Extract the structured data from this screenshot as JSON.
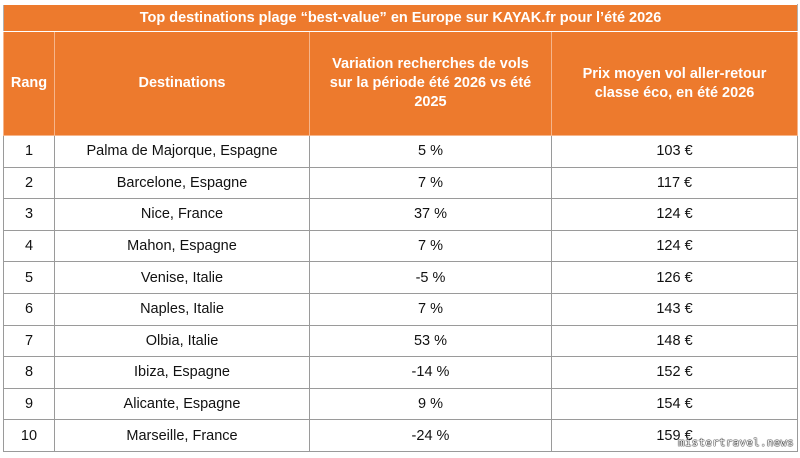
{
  "table": {
    "title": "Top destinations plage “best-value” en Europe sur KAYAK.fr pour l’été 2026",
    "headers": {
      "rank": "Rang",
      "destination": "Destinations",
      "variation": "Variation recherches de vols sur la période été 2026 vs été 2025",
      "price": "Prix moyen vol aller-retour classe éco, en été 2026"
    },
    "rows": [
      {
        "rank": "1",
        "destination": "Palma de Majorque, Espagne",
        "variation": "5 %",
        "price": "103 €"
      },
      {
        "rank": "2",
        "destination": "Barcelone, Espagne",
        "variation": "7 %",
        "price": "117 €"
      },
      {
        "rank": "3",
        "destination": "Nice, France",
        "variation": "37 %",
        "price": "124 €"
      },
      {
        "rank": "4",
        "destination": "Mahon, Espagne",
        "variation": "7 %",
        "price": "124 €"
      },
      {
        "rank": "5",
        "destination": "Venise, Italie",
        "variation": "-5 %",
        "price": "126 €"
      },
      {
        "rank": "6",
        "destination": "Naples, Italie",
        "variation": "7 %",
        "price": "143 €"
      },
      {
        "rank": "7",
        "destination": "Olbia, Italie",
        "variation": "53 %",
        "price": "148 €"
      },
      {
        "rank": "8",
        "destination": "Ibiza, Espagne",
        "variation": "-14 %",
        "price": "152 €"
      },
      {
        "rank": "9",
        "destination": "Alicante, Espagne",
        "variation": "9 %",
        "price": "154 €"
      },
      {
        "rank": "10",
        "destination": "Marseille, France",
        "variation": "-24 %",
        "price": "159 €"
      }
    ]
  },
  "watermark": "mistertravel.news",
  "colors": {
    "header_bg": "#ed7a2d",
    "header_text": "#ffffff",
    "border": "#9a9a9a"
  }
}
